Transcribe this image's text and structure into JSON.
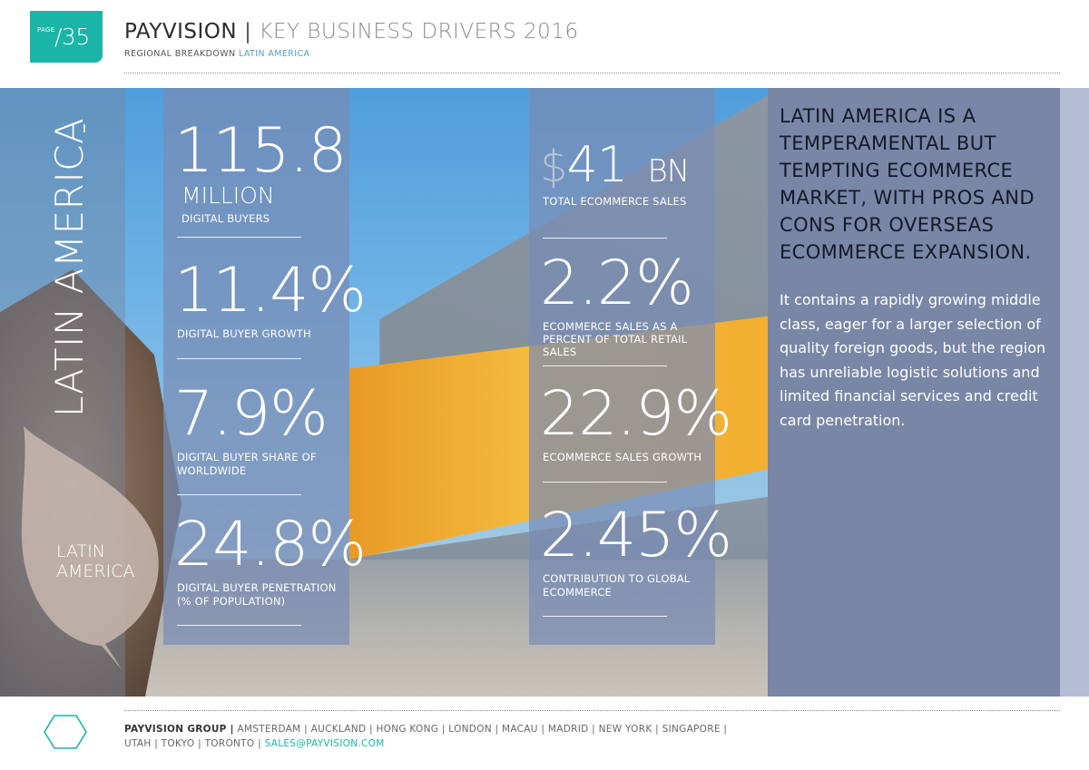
{
  "header": {
    "page_label": "PAGE",
    "page_number": "/35",
    "brand": "PAYVISION",
    "separator": "|",
    "title": "KEY BUSINESS DRIVERS 2016",
    "breadcrumb_prefix": "REGIONAL BREAKDOWN",
    "breadcrumb_region": "LATIN AMERICA"
  },
  "region": {
    "vertical_title": "LATIN AMERICA",
    "leaf_label_line1": "LATIN",
    "leaf_label_line2": "AMERICA"
  },
  "stats_left": [
    {
      "value": "115.8",
      "unit": "MILLION",
      "label": "DIGITAL BUYERS"
    },
    {
      "value": "11.4%",
      "label": "DIGITAL BUYER GROWTH"
    },
    {
      "value": "7.9%",
      "label_line1": "DIGITAL BUYER SHARE OF",
      "label_line2": "WORLDWIDE"
    },
    {
      "value": "24.8%",
      "label_line1": "DIGITAL BUYER PENETRATION",
      "label_line2": "(% OF POPULATION)"
    }
  ],
  "stats_right": [
    {
      "currency": "$",
      "value": "41",
      "unit": "BN",
      "label": "TOTAL ECOMMERCE SALES"
    },
    {
      "value": "2.2%",
      "label_line1": "ECOMMERCE SALES AS A",
      "label_line2": "PERCENT OF TOTAL RETAIL",
      "label_line3": "SALES"
    },
    {
      "value": "22.9%",
      "label": "ECOMMERCE SALES GROWTH"
    },
    {
      "value": "2.45%",
      "label_line1": "CONTRIBUTION TO GLOBAL",
      "label_line2": "ECOMMERCE"
    }
  ],
  "panel": {
    "headline": "LATIN AMERICA IS A TEMPERAMENTAL BUT TEMPTING ECOMMERCE MARKET, WITH PROS AND CONS FOR OVERSEAS ECOMMERCE EXPANSION.",
    "body": "It contains a rapidly growing middle class, eager for a larger selection of quality foreign goods, but the region has unreliable logistic solutions and limited financial services and credit card penetration."
  },
  "footer": {
    "brand": "PAYVISION GROUP |",
    "cities_line1": "AMSTERDAM | AUCKLAND | HONG KONG | LONDON | MACAU | MADRID | NEW YORK | SINGAPORE |",
    "cities_line2": "UTAH | TOKYO | TORONTO |",
    "email": "SALES@PAYVISION.COM"
  },
  "colors": {
    "accent_teal": "#1ab5a7",
    "stat_panel": "#7a8cb4",
    "right_panel": "#7986a6"
  }
}
